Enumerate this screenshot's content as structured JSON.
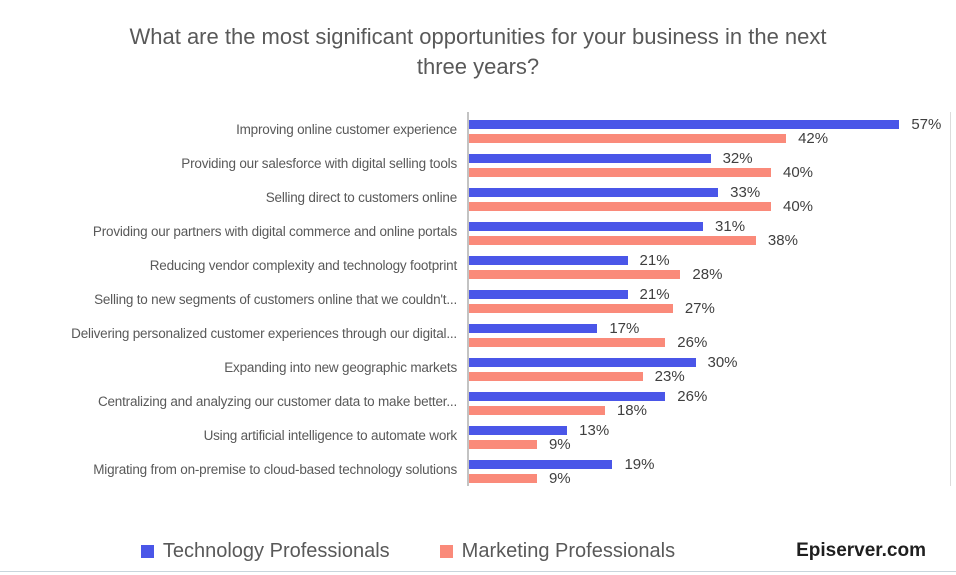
{
  "title": "What are the most significant opportunities for your business in the next three years?",
  "source_label": "Episerver.com",
  "colors": {
    "technology": "#4A56E8",
    "marketing": "#FA8A7A",
    "title_text": "#595959",
    "value_text": "#3F3F3F",
    "axis_line": "#C3C3C3"
  },
  "legend": [
    {
      "name": "Technology Professionals",
      "color": "#4A56E8"
    },
    {
      "name": "Marketing Professionals",
      "color": "#FA8A7A"
    }
  ],
  "chart_data": {
    "type": "bar",
    "orientation": "horizontal",
    "title": "What are the most significant opportunities for your business in the next three years?",
    "categories": [
      "Improving online customer experience",
      "Providing our salesforce with digital selling tools",
      "Selling direct to customers online",
      "Providing our partners with digital commerce and online portals",
      "Reducing vendor complexity and technology footprint",
      "Selling to new segments of customers online that we couldn't...",
      "Delivering personalized customer experiences through our digital...",
      "Expanding into new geographic markets",
      "Centralizing and analyzing our customer data to make better...",
      "Using artificial intelligence to automate work",
      "Migrating from on-premise to cloud-based technology solutions"
    ],
    "series": [
      {
        "name": "Technology Professionals",
        "color": "#4A56E8",
        "values": [
          57,
          32,
          33,
          31,
          21,
          21,
          17,
          30,
          26,
          13,
          19
        ]
      },
      {
        "name": "Marketing Professionals",
        "color": "#FA8A7A",
        "values": [
          42,
          40,
          40,
          38,
          28,
          27,
          26,
          23,
          18,
          9,
          9
        ]
      }
    ],
    "value_suffix": "%",
    "value_labels": true,
    "xlim": [
      0,
      64
    ],
    "grid": false,
    "legend_position": "bottom"
  }
}
